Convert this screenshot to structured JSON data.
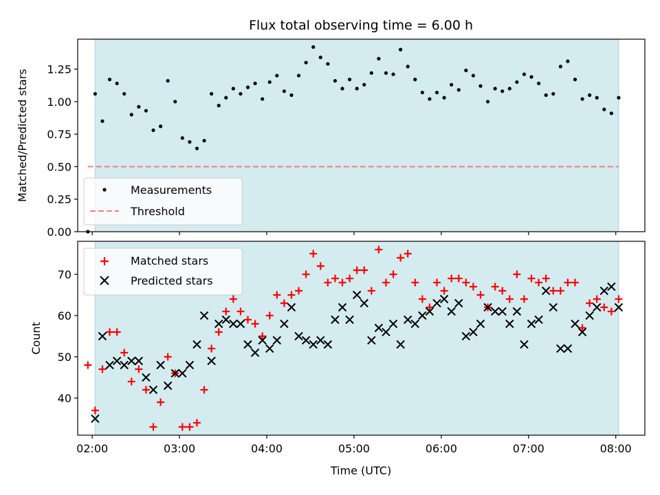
{
  "figure": {
    "title": "Flux total observing time = 6.00 h",
    "xlabel": "Time (UTC)"
  },
  "chart_data": [
    {
      "type": "scatter",
      "panel": "top",
      "title": "Flux total observing time = 6.00 h",
      "ylabel": "Matched/Predicted stars",
      "ylim": [
        0.0,
        1.48
      ],
      "yticks": [
        "0.00",
        "0.25",
        "0.50",
        "0.75",
        "1.00",
        "1.25"
      ],
      "ytick_values": [
        0.0,
        0.25,
        0.5,
        0.75,
        1.0,
        1.25
      ],
      "xlim": [
        "01:50",
        "08:20"
      ],
      "shaded_span": [
        "02:02",
        "08:02"
      ],
      "shade_color": "#d4ebf0",
      "legend_position": "lower-left",
      "series": [
        {
          "name": "Measurements",
          "marker": "dot",
          "color": "#000000",
          "x": [
            "01:57",
            "02:02",
            "02:07",
            "02:12",
            "02:17",
            "02:22",
            "02:27",
            "02:32",
            "02:37",
            "02:42",
            "02:47",
            "02:52",
            "02:57",
            "03:02",
            "03:07",
            "03:12",
            "03:17",
            "03:22",
            "03:27",
            "03:32",
            "03:37",
            "03:42",
            "03:47",
            "03:52",
            "03:57",
            "04:02",
            "04:07",
            "04:12",
            "04:17",
            "04:22",
            "04:27",
            "04:32",
            "04:37",
            "04:42",
            "04:47",
            "04:52",
            "04:57",
            "05:02",
            "05:07",
            "05:12",
            "05:17",
            "05:22",
            "05:27",
            "05:32",
            "05:37",
            "05:42",
            "05:47",
            "05:52",
            "05:57",
            "06:02",
            "06:07",
            "06:12",
            "06:17",
            "06:22",
            "06:27",
            "06:32",
            "06:37",
            "06:42",
            "06:47",
            "06:52",
            "06:57",
            "07:02",
            "07:07",
            "07:12",
            "07:17",
            "07:22",
            "07:27",
            "07:32",
            "07:37",
            "07:42",
            "07:47",
            "07:52",
            "07:57",
            "08:02"
          ],
          "y": [
            0.0,
            1.06,
            0.85,
            1.17,
            1.14,
            1.06,
            0.9,
            0.96,
            0.93,
            0.78,
            0.81,
            1.16,
            1.0,
            0.72,
            0.69,
            0.64,
            0.7,
            1.06,
            0.97,
            1.03,
            1.1,
            1.06,
            1.11,
            1.14,
            1.02,
            1.15,
            1.2,
            1.08,
            1.05,
            1.2,
            1.3,
            1.42,
            1.34,
            1.29,
            1.16,
            1.1,
            1.17,
            1.1,
            1.13,
            1.22,
            1.33,
            1.22,
            1.21,
            1.4,
            1.27,
            1.17,
            1.07,
            1.02,
            1.07,
            1.03,
            1.13,
            1.09,
            1.24,
            1.2,
            1.12,
            1.0,
            1.1,
            1.08,
            1.1,
            1.15,
            1.21,
            1.19,
            1.14,
            1.05,
            1.06,
            1.27,
            1.31,
            1.17,
            1.02,
            1.05,
            1.03,
            0.94,
            0.91,
            1.03
          ]
        },
        {
          "name": "Threshold",
          "marker": "dashed-line",
          "color": "#f08080",
          "x": [
            "01:57",
            "08:02"
          ],
          "y": [
            0.5,
            0.5
          ]
        }
      ]
    },
    {
      "type": "scatter",
      "panel": "bottom",
      "ylabel": "Count",
      "ylim": [
        31,
        78
      ],
      "yticks": [
        "40",
        "50",
        "60",
        "70"
      ],
      "ytick_values": [
        40,
        50,
        60,
        70
      ],
      "xlim": [
        "01:50",
        "08:20"
      ],
      "xticks": [
        "02:00",
        "03:00",
        "04:00",
        "05:00",
        "06:00",
        "07:00",
        "08:00"
      ],
      "shaded_span": [
        "02:02",
        "08:02"
      ],
      "shade_color": "#d4ebf0",
      "legend_position": "top-left",
      "series": [
        {
          "name": "Matched stars",
          "marker": "plus",
          "color": "#ff0000",
          "x": [
            "01:57",
            "02:02",
            "02:07",
            "02:12",
            "02:17",
            "02:22",
            "02:27",
            "02:32",
            "02:37",
            "02:42",
            "02:47",
            "02:52",
            "02:57",
            "03:02",
            "03:07",
            "03:12",
            "03:17",
            "03:22",
            "03:27",
            "03:32",
            "03:37",
            "03:42",
            "03:47",
            "03:52",
            "03:57",
            "04:02",
            "04:07",
            "04:12",
            "04:17",
            "04:22",
            "04:27",
            "04:32",
            "04:37",
            "04:42",
            "04:47",
            "04:52",
            "04:57",
            "05:02",
            "05:07",
            "05:12",
            "05:17",
            "05:22",
            "05:27",
            "05:32",
            "05:37",
            "05:42",
            "05:47",
            "05:52",
            "05:57",
            "06:02",
            "06:07",
            "06:12",
            "06:17",
            "06:22",
            "06:27",
            "06:32",
            "06:37",
            "06:42",
            "06:47",
            "06:52",
            "06:57",
            "07:02",
            "07:07",
            "07:12",
            "07:17",
            "07:22",
            "07:27",
            "07:32",
            "07:37",
            "07:42",
            "07:47",
            "07:52",
            "07:57",
            "08:02"
          ],
          "y": [
            48,
            37,
            47,
            56,
            56,
            51,
            44,
            47,
            42,
            33,
            39,
            50,
            46,
            33,
            33,
            34,
            42,
            52,
            56,
            61,
            64,
            61,
            59,
            58,
            55,
            60,
            65,
            63,
            65,
            66,
            70,
            75,
            72,
            68,
            69,
            68,
            69,
            71,
            71,
            66,
            76,
            68,
            70,
            74,
            75,
            68,
            64,
            62,
            68,
            66,
            69,
            69,
            68,
            67,
            65,
            62,
            67,
            66,
            64,
            70,
            64,
            69,
            68,
            69,
            66,
            66,
            68,
            68,
            57,
            63,
            64,
            62,
            61,
            64
          ]
        },
        {
          "name": "Predicted stars",
          "marker": "x",
          "color": "#000000",
          "x": [
            "02:02",
            "02:07",
            "02:12",
            "02:17",
            "02:22",
            "02:27",
            "02:32",
            "02:37",
            "02:42",
            "02:47",
            "02:52",
            "02:57",
            "03:02",
            "03:07",
            "03:12",
            "03:17",
            "03:22",
            "03:27",
            "03:32",
            "03:37",
            "03:42",
            "03:47",
            "03:52",
            "03:57",
            "04:02",
            "04:07",
            "04:12",
            "04:17",
            "04:22",
            "04:27",
            "04:32",
            "04:37",
            "04:42",
            "04:47",
            "04:52",
            "04:57",
            "05:02",
            "05:07",
            "05:12",
            "05:17",
            "05:22",
            "05:27",
            "05:32",
            "05:37",
            "05:42",
            "05:47",
            "05:52",
            "05:57",
            "06:02",
            "06:07",
            "06:12",
            "06:17",
            "06:22",
            "06:27",
            "06:32",
            "06:37",
            "06:42",
            "06:47",
            "06:52",
            "06:57",
            "07:02",
            "07:07",
            "07:12",
            "07:17",
            "07:22",
            "07:27",
            "07:32",
            "07:37",
            "07:42",
            "07:47",
            "07:52",
            "07:57",
            "08:02"
          ],
          "y": [
            35,
            55,
            48,
            49,
            48,
            49,
            49,
            45,
            42,
            48,
            43,
            46,
            46,
            48,
            53,
            60,
            49,
            58,
            59,
            58,
            58,
            53,
            51,
            54,
            52,
            54,
            58,
            62,
            55,
            54,
            53,
            54,
            53,
            59,
            62,
            59,
            65,
            63,
            54,
            57,
            56,
            58,
            53,
            59,
            58,
            60,
            61,
            63,
            64,
            61,
            63,
            55,
            56,
            58,
            62,
            61,
            61,
            58,
            61,
            53,
            58,
            59,
            66,
            62,
            52,
            52,
            58,
            56,
            60,
            62,
            66,
            67,
            62
          ]
        }
      ]
    }
  ]
}
